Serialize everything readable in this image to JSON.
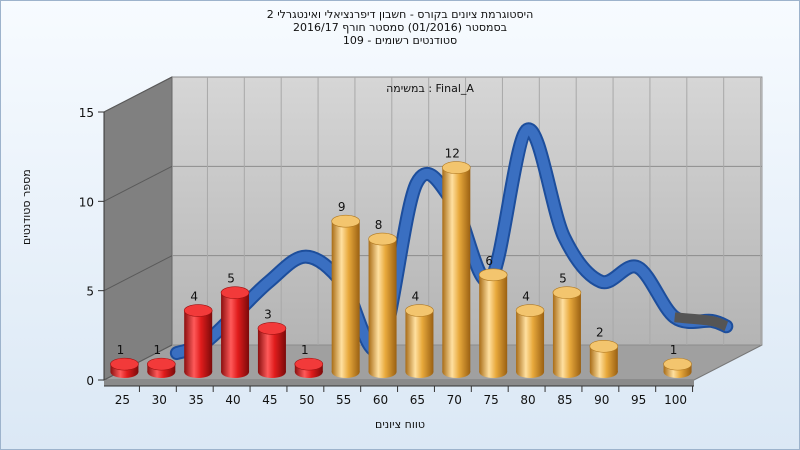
{
  "chart_data": {
    "type": "bar",
    "title_lines": [
      "היסטוגרמת ציונים בקורס - חשבון דיפרנציאלי ואינטגרלי 2",
      "בסמסטר (01/2016) סמסטר חורף 2016/17",
      "סטודנטים רשומים - 109"
    ],
    "annotation": "במשימה : Final_A",
    "xlabel": "טווח ציונים",
    "ylabel": "מספר סטודנטים",
    "x_ticks": [
      25,
      30,
      35,
      40,
      45,
      50,
      55,
      60,
      65,
      70,
      75,
      80,
      85,
      90,
      95,
      100
    ],
    "y_ticks": [
      0,
      5,
      10,
      15
    ],
    "ylim": [
      0,
      15
    ],
    "series": [
      {
        "x": [
          25,
          30,
          35,
          40,
          45,
          50,
          55,
          60,
          65,
          70,
          75,
          80,
          85,
          90,
          95,
          100
        ],
        "values": [
          1,
          1,
          4,
          5,
          3,
          1,
          9,
          8,
          4,
          12,
          6,
          4,
          5,
          2,
          0,
          1
        ]
      }
    ],
    "curve": {
      "x": [
        27.5,
        31,
        35,
        40,
        45,
        50,
        55,
        60,
        65,
        70,
        75,
        80,
        85,
        90,
        95,
        100,
        102
      ],
      "values": [
        0.5,
        1.0,
        2.5,
        4.5,
        5.9,
        4.4,
        0.8,
        10.0,
        8.9,
        4.6,
        13.0,
        7.0,
        4.5,
        5.3,
        2.5,
        2.3,
        2.0
      ]
    },
    "colors": {
      "fail_bar": "#e21f1f",
      "pass_bar": "#e8a93c",
      "curve": "#3a6fc1",
      "back_wall": "#c8c8c8",
      "side_wall": "#808080",
      "floor": "#a0a0a0"
    },
    "pass_threshold": 55,
    "grid": true,
    "legend": "none"
  }
}
